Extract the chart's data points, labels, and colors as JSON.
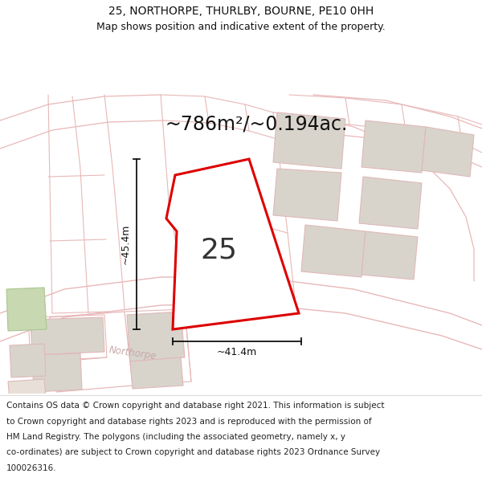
{
  "title_line1": "25, NORTHORPE, THURLBY, BOURNE, PE10 0HH",
  "title_line2": "Map shows position and indicative extent of the property.",
  "area_text": "~786m²/~0.194ac.",
  "dimension_h": "~45.4m",
  "dimension_w": "~41.4m",
  "plot_number": "25",
  "footer_lines": [
    "Contains OS data © Crown copyright and database right 2021. This information is subject",
    "to Crown copyright and database rights 2023 and is reproduced with the permission of",
    "HM Land Registry. The polygons (including the associated geometry, namely x, y",
    "co-ordinates) are subject to Crown copyright and database rights 2023 Ordnance Survey",
    "100026316."
  ],
  "map_bg": "#faf8f6",
  "road_outline_color": "#e8b8b8",
  "building_fill": "#d8d4cc",
  "building_edge": "#e0b8b8",
  "green_fill": "#c8d8b0",
  "plot_color": "#dd0000",
  "plot_fill": "#ffffff",
  "dim_color": "#111111",
  "title_color": "#111111",
  "road_label_color": "#c8a8a8",
  "header_bg": "#ffffff",
  "footer_bg": "#ffffff",
  "area_fontsize": 17,
  "title1_fontsize": 10,
  "title2_fontsize": 9,
  "plot_label_fontsize": 26,
  "dim_fontsize": 9,
  "footer_fontsize": 7.5
}
